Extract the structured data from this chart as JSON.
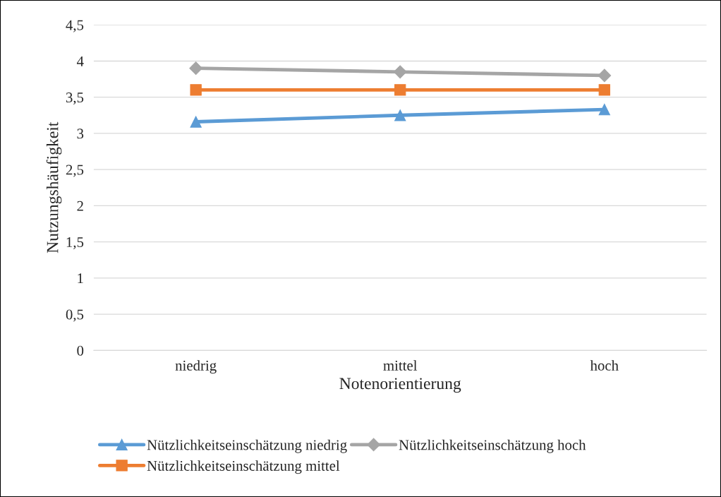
{
  "chart_data": {
    "type": "line",
    "xlabel": "Notenorientierung",
    "ylabel": "Nutzungshäufigkeit",
    "categories": [
      "niedrig",
      "mittel",
      "hoch"
    ],
    "series": [
      {
        "name": "Nützlichkeitseinschätzung niedrig",
        "color": "#5b9bd5",
        "marker": "triangle",
        "values": [
          3.16,
          3.25,
          3.33
        ]
      },
      {
        "name": "Nützlichkeitseinschätzung mittel",
        "color": "#ed7d31",
        "marker": "square",
        "values": [
          3.6,
          3.6,
          3.6
        ]
      },
      {
        "name": "Nützlichkeitseinschätzung hoch",
        "color": "#a5a5a5",
        "marker": "diamond",
        "values": [
          3.9,
          3.85,
          3.8
        ]
      }
    ],
    "ylim": [
      0,
      4.5
    ],
    "yticks": [
      {
        "value": 0,
        "label": "0"
      },
      {
        "value": 0.5,
        "label": "0,5"
      },
      {
        "value": 1,
        "label": "1"
      },
      {
        "value": 1.5,
        "label": "1,5"
      },
      {
        "value": 2,
        "label": "2"
      },
      {
        "value": 2.5,
        "label": "2,5"
      },
      {
        "value": 3,
        "label": "3"
      },
      {
        "value": 3.5,
        "label": "3,5"
      },
      {
        "value": 4,
        "label": "4"
      },
      {
        "value": 4.5,
        "label": "4,5"
      }
    ],
    "grid": "y",
    "legend": "bottom",
    "line_style": "solid"
  }
}
